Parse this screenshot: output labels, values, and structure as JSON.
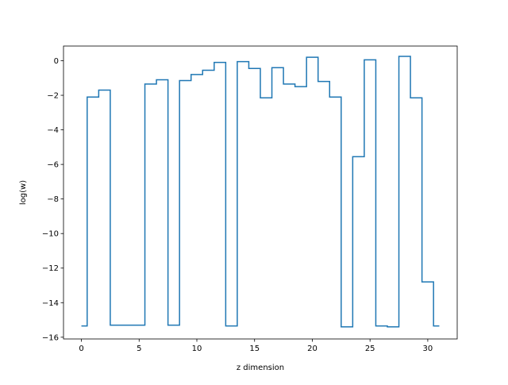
{
  "chart_data": {
    "type": "line",
    "drawstyle": "steps-mid",
    "title": "",
    "xlabel": "z dimension",
    "ylabel": "log(w)",
    "xlim": [
      -1.55,
      32.55
    ],
    "ylim": [
      -16.1,
      0.85
    ],
    "xticks": [
      0,
      5,
      10,
      15,
      20,
      25,
      30
    ],
    "yticks": [
      0,
      -2,
      -4,
      -6,
      -8,
      -10,
      -12,
      -14,
      -16
    ],
    "grid": false,
    "legend": "none",
    "series": [
      {
        "color": "#1f77b4",
        "x": [
          0,
          1,
          2,
          3,
          4,
          5,
          6,
          7,
          8,
          9,
          10,
          11,
          12,
          13,
          14,
          15,
          16,
          17,
          18,
          19,
          20,
          21,
          22,
          23,
          24,
          25,
          26,
          27,
          28,
          29,
          30,
          31
        ],
        "y": [
          -15.35,
          -2.1,
          -1.7,
          -15.3,
          -15.3,
          -15.3,
          -1.35,
          -1.1,
          -15.3,
          -1.15,
          -0.8,
          -0.55,
          -0.1,
          -15.35,
          -0.05,
          -0.45,
          -2.15,
          -0.4,
          -1.35,
          -1.5,
          0.2,
          -1.2,
          -2.1,
          -15.4,
          -5.55,
          0.05,
          -15.35,
          -15.4,
          0.25,
          -2.15,
          -12.8,
          -15.35
        ]
      }
    ]
  }
}
